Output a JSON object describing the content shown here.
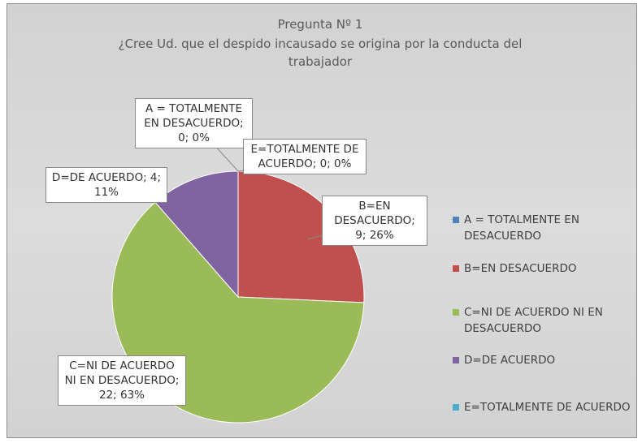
{
  "chart_data": {
    "type": "pie",
    "title": "Pregunta Nº 1",
    "subtitle": "¿Cree Ud. que el despido incausado se origina por la conducta del trabajador",
    "categories": [
      "A = TOTALMENTE EN DESACUERDO",
      "B=EN DESACUERDO",
      "C=NI DE ACUERDO NI EN DESACUERDO",
      "D=DE ACUERDO",
      "E=TOTALMENTE DE ACUERDO"
    ],
    "values": [
      0,
      9,
      22,
      4,
      0
    ],
    "value_labels": [
      "A = TOTALMENTE EN DESACUERDO; 0; 0%",
      "B=EN DESACUERDO; 9; 26%",
      "C=NI DE ACUERDO NI EN DESACUERDO; 22; 63%",
      "D=DE ACUERDO; 4; 11%",
      "E=TOTALMENTE DE ACUERDO; 0; 0%"
    ],
    "colors": [
      "#4f81bd",
      "#c0504d",
      "#9bbb59",
      "#8064a2",
      "#4bacc6"
    ],
    "legend": "right"
  }
}
